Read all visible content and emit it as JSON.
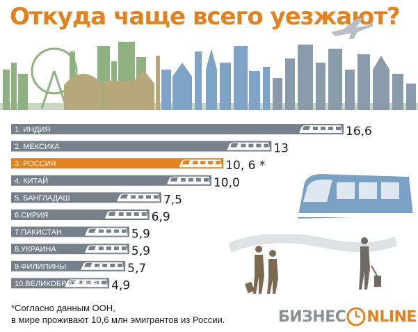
{
  "title": "Откуда чаще всего уезжают?",
  "colors": {
    "accent": "#e0821f",
    "bar": "#76808b",
    "highlight_bar": "#e0821f"
  },
  "chart_data": {
    "type": "bar",
    "orientation": "horizontal",
    "categories": [
      "1. ИНДИЯ",
      "2. МЕКСИКА",
      "3. РОССИЯ",
      "4. КИТАЙ",
      "5. БАНГЛАДАШ",
      "6.СИРИЯ",
      "7.ПАКИСТАН",
      "8.УКРАИНА",
      "9.ФИЛИПИНЫ",
      "10.ВЕЛИКОБРИТАНИЯ"
    ],
    "values": [
      16.6,
      13,
      10.6,
      10.0,
      7.5,
      6.9,
      5.9,
      5.9,
      5.7,
      4.9
    ],
    "value_labels": [
      "16,6",
      "13",
      "10, 6 *",
      "10,0",
      "7,5",
      "6,9",
      "5,9",
      "5,9",
      "5,7",
      "4,9"
    ],
    "highlight_index": 2,
    "xlim": [
      0,
      16.6
    ],
    "grid": false,
    "legend": "none"
  },
  "footnote": {
    "line1": "*Согласно данным ООН,",
    "line2": "в мире проживают 10,6 млн эмигрантов из России."
  },
  "logo": {
    "part1": "БИЗНЕС",
    "part2": "NLINE"
  }
}
